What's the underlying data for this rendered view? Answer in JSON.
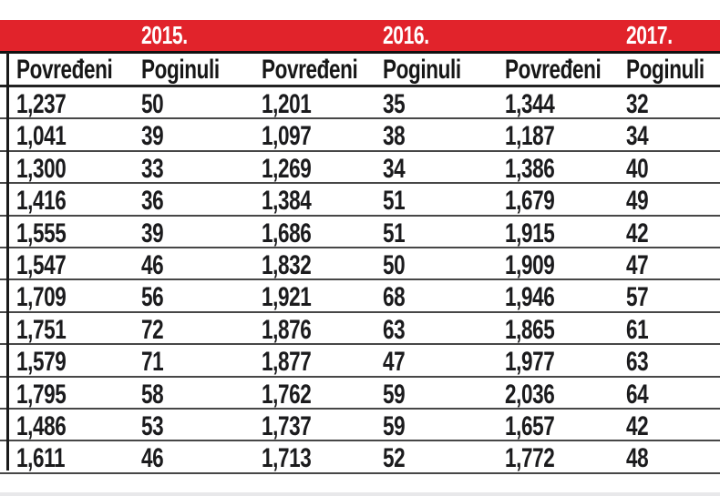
{
  "colors": {
    "band_red": "#e1232b",
    "year_text": "#ffffff",
    "row_line": "#474747",
    "header_line": "#222222",
    "text": "#1b1b1d",
    "bottom_strip": "#e8e8ea"
  },
  "table": {
    "years": [
      "2015.",
      "2016.",
      "2017."
    ],
    "columns": [
      "Povređeni",
      "Poginuli",
      "Povređeni",
      "Poginuli",
      "Povređeni",
      "Poginuli"
    ]
  },
  "chart_data": {
    "type": "table",
    "column_groups": [
      "2015.",
      "2016.",
      "2017."
    ],
    "columns": [
      "Povređeni",
      "Poginuli",
      "Povređeni",
      "Poginuli",
      "Povređeni",
      "Poginuli"
    ],
    "rows": [
      [
        "1,237",
        "50",
        "1,201",
        "35",
        "1,344",
        "32"
      ],
      [
        "1,041",
        "39",
        "1,097",
        "38",
        "1,187",
        "34"
      ],
      [
        "1,300",
        "33",
        "1,269",
        "34",
        "1,386",
        "40"
      ],
      [
        "1,416",
        "36",
        "1,384",
        "51",
        "1,679",
        "49"
      ],
      [
        "1,555",
        "39",
        "1,686",
        "51",
        "1,915",
        "42"
      ],
      [
        "1,547",
        "46",
        "1,832",
        "50",
        "1,909",
        "47"
      ],
      [
        "1,709",
        "56",
        "1,921",
        "68",
        "1,946",
        "57"
      ],
      [
        "1,751",
        "72",
        "1,876",
        "63",
        "1,865",
        "61"
      ],
      [
        "1,579",
        "71",
        "1,877",
        "47",
        "1,977",
        "63"
      ],
      [
        "1,795",
        "58",
        "1,762",
        "59",
        "2,036",
        "64"
      ],
      [
        "1,486",
        "53",
        "1,737",
        "59",
        "1,657",
        "42"
      ],
      [
        "1,611",
        "46",
        "1,713",
        "52",
        "1,772",
        "48"
      ]
    ]
  }
}
